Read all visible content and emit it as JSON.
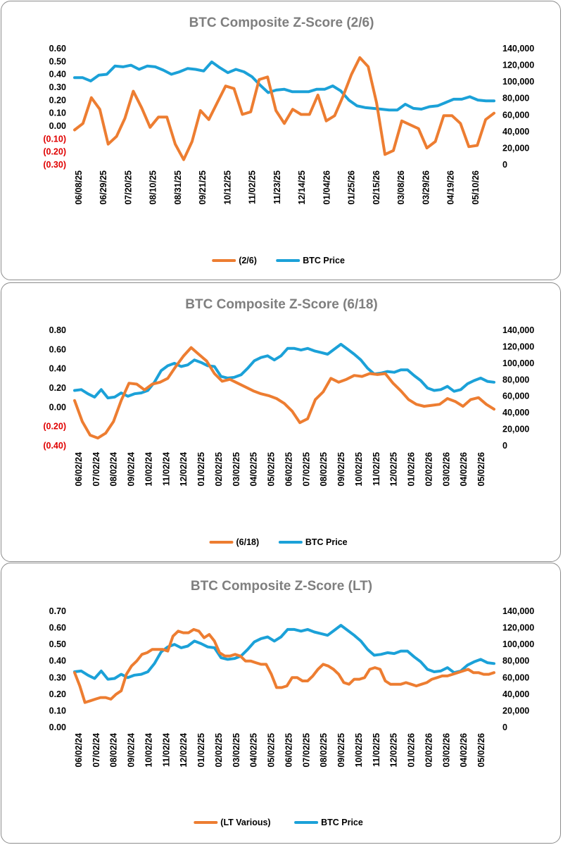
{
  "colors": {
    "zscore": "#ed7d31",
    "price": "#1ba1d8",
    "negative": "#e00000",
    "title": "#7f7f7f",
    "border": "#8c8c8c"
  },
  "chart_data": [
    {
      "type": "line",
      "title": "BTC Composite Z-Score (2/6)",
      "x_tick_labels": [
        "06/08/25",
        "06/29/25",
        "07/20/25",
        "08/10/25",
        "08/31/25",
        "09/21/25",
        "10/12/25",
        "11/02/25",
        "11/23/25",
        "12/14/25",
        "01/04/26",
        "01/25/26",
        "02/15/26",
        "03/08/26",
        "03/29/26",
        "04/19/26",
        "05/10/26"
      ],
      "y_left": {
        "min": -0.3,
        "max": 0.6,
        "step": 0.1,
        "tick_labels": [
          "(0.30)",
          "(0.20)",
          "(0.10)",
          "0.00",
          "0.10",
          "0.20",
          "0.30",
          "0.40",
          "0.50",
          "0.60"
        ]
      },
      "y_right": {
        "min": 0,
        "max": 140000,
        "step": 20000,
        "tick_labels": [
          "0",
          "20,000",
          "40,000",
          "60,000",
          "80,000",
          "100,000",
          "120,000",
          "140,000"
        ]
      },
      "legend": {
        "position": "bottom",
        "zscore_label": "(2/6)",
        "price_label": "BTC Price"
      },
      "series": [
        {
          "name": "(2/6)",
          "axis": "left",
          "values": [
            -0.03,
            0.02,
            0.22,
            0.13,
            -0.14,
            -0.08,
            0.06,
            0.27,
            0.14,
            -0.01,
            0.07,
            0.07,
            -0.14,
            -0.26,
            -0.12,
            0.12,
            0.05,
            0.18,
            0.31,
            0.29,
            0.09,
            0.11,
            0.36,
            0.38,
            0.12,
            0.02,
            0.13,
            0.09,
            0.09,
            0.24,
            0.04,
            0.08,
            0.23,
            0.4,
            0.53,
            0.46,
            0.18,
            -0.22,
            -0.19,
            0.04,
            0.01,
            -0.02,
            -0.17,
            -0.12,
            0.08,
            0.08,
            0.02,
            -0.16,
            -0.15,
            0.05,
            0.1
          ]
        },
        {
          "name": "BTC Price",
          "axis": "right",
          "values": [
            105000,
            105000,
            101000,
            108000,
            109000,
            119000,
            118000,
            120000,
            115000,
            119000,
            118000,
            114000,
            109000,
            112000,
            116000,
            115000,
            113000,
            124000,
            117000,
            111000,
            115000,
            112000,
            106000,
            96000,
            87000,
            90000,
            91000,
            88000,
            88000,
            88000,
            91000,
            91000,
            95000,
            89000,
            78000,
            71000,
            69000,
            68000,
            67000,
            66000,
            66000,
            73000,
            68000,
            67000,
            70000,
            71000,
            75000,
            79000,
            79000,
            82000,
            78000,
            77000,
            77000
          ]
        }
      ]
    },
    {
      "type": "line",
      "title": "BTC Composite Z-Score (6/18)",
      "x_tick_labels": [
        "06/02/24",
        "07/02/24",
        "08/02/24",
        "09/02/24",
        "10/02/24",
        "11/02/24",
        "12/02/24",
        "01/02/25",
        "02/02/25",
        "03/02/25",
        "04/02/25",
        "05/02/25",
        "06/02/25",
        "07/02/25",
        "08/02/25",
        "09/02/25",
        "10/02/25",
        "11/02/25",
        "12/02/25",
        "01/02/26",
        "02/02/26",
        "03/02/26",
        "04/02/26",
        "05/02/26"
      ],
      "y_left": {
        "min": -0.4,
        "max": 0.8,
        "step": 0.2,
        "tick_labels": [
          "(0.40)",
          "(0.20)",
          "0.00",
          "0.20",
          "0.40",
          "0.60",
          "0.80"
        ]
      },
      "y_right": {
        "min": 0,
        "max": 140000,
        "step": 20000,
        "tick_labels": [
          "0",
          "20,000",
          "40,000",
          "60,000",
          "80,000",
          "100,000",
          "120,000",
          "140,000"
        ]
      },
      "legend": {
        "position": "bottom",
        "zscore_label": "(6/18)",
        "price_label": "BTC Price"
      },
      "series": [
        {
          "name": "(6/18)",
          "axis": "left",
          "values": [
            0.07,
            -0.15,
            -0.29,
            -0.32,
            -0.27,
            -0.15,
            0.07,
            0.25,
            0.24,
            0.18,
            0.24,
            0.26,
            0.3,
            0.42,
            0.53,
            0.62,
            0.55,
            0.48,
            0.35,
            0.27,
            0.29,
            0.25,
            0.21,
            0.17,
            0.14,
            0.12,
            0.09,
            0.04,
            -0.04,
            -0.16,
            -0.12,
            0.08,
            0.16,
            0.3,
            0.26,
            0.29,
            0.33,
            0.32,
            0.35,
            0.34,
            0.35,
            0.25,
            0.17,
            0.08,
            0.03,
            0.01,
            0.02,
            0.03,
            0.09,
            0.06,
            0.01,
            0.08,
            0.1,
            0.03,
            -0.02
          ]
        },
        {
          "name": "BTC Price",
          "axis": "right",
          "values": [
            67000,
            68000,
            63000,
            59000,
            68000,
            58000,
            59000,
            64000,
            60000,
            63000,
            64000,
            67000,
            77000,
            91000,
            97000,
            100000,
            96000,
            98000,
            104000,
            101000,
            97000,
            96000,
            84000,
            82000,
            83000,
            86000,
            94000,
            103000,
            107000,
            109000,
            104000,
            109000,
            118000,
            118000,
            116000,
            118000,
            115000,
            113000,
            111000,
            117000,
            123000,
            117000,
            111000,
            104000,
            94000,
            87000,
            88000,
            90000,
            89000,
            92000,
            92000,
            85000,
            79000,
            70000,
            67000,
            68000,
            72000,
            66000,
            68000,
            75000,
            79000,
            82000,
            78000,
            77000
          ]
        }
      ]
    },
    {
      "type": "line",
      "title": "BTC Composite Z-Score (LT)",
      "x_tick_labels": [
        "06/02/24",
        "07/02/24",
        "08/02/24",
        "09/02/24",
        "10/02/24",
        "11/02/24",
        "12/02/24",
        "01/02/25",
        "02/02/25",
        "03/02/25",
        "04/02/25",
        "05/02/25",
        "06/02/25",
        "07/02/25",
        "08/02/25",
        "09/02/25",
        "10/02/25",
        "11/02/25",
        "12/02/25",
        "01/02/26",
        "02/02/26",
        "03/02/26",
        "04/02/26",
        "05/02/26"
      ],
      "y_left": {
        "min": 0,
        "max": 0.7,
        "step": 0.1,
        "tick_labels": [
          "0.00",
          "0.10",
          "0.20",
          "0.30",
          "0.40",
          "0.50",
          "0.60",
          "0.70"
        ]
      },
      "y_right": {
        "min": 0,
        "max": 140000,
        "step": 20000,
        "tick_labels": [
          "0",
          "20,000",
          "40,000",
          "60,000",
          "80,000",
          "100,000",
          "120,000",
          "140,000"
        ]
      },
      "legend": {
        "position": "bottom",
        "zscore_label": "(LT Various)",
        "price_label": "BTC Price"
      },
      "series": [
        {
          "name": "(LT Various)",
          "axis": "left",
          "values": [
            0.33,
            0.25,
            0.15,
            0.16,
            0.17,
            0.18,
            0.18,
            0.17,
            0.2,
            0.22,
            0.32,
            0.37,
            0.4,
            0.44,
            0.45,
            0.47,
            0.47,
            0.47,
            0.46,
            0.55,
            0.58,
            0.57,
            0.57,
            0.59,
            0.58,
            0.54,
            0.56,
            0.52,
            0.45,
            0.43,
            0.43,
            0.44,
            0.43,
            0.4,
            0.4,
            0.39,
            0.38,
            0.38,
            0.32,
            0.24,
            0.24,
            0.25,
            0.3,
            0.3,
            0.28,
            0.28,
            0.31,
            0.35,
            0.38,
            0.37,
            0.35,
            0.32,
            0.27,
            0.26,
            0.29,
            0.29,
            0.3,
            0.35,
            0.36,
            0.35,
            0.28,
            0.26,
            0.26,
            0.26,
            0.27,
            0.26,
            0.25,
            0.26,
            0.27,
            0.29,
            0.3,
            0.31,
            0.31,
            0.32,
            0.33,
            0.34,
            0.35,
            0.33,
            0.33,
            0.32,
            0.32,
            0.33
          ]
        },
        {
          "name": "BTC Price",
          "axis": "right",
          "values": [
            67000,
            68000,
            63000,
            59000,
            68000,
            58000,
            59000,
            64000,
            60000,
            63000,
            64000,
            67000,
            77000,
            91000,
            97000,
            100000,
            96000,
            98000,
            104000,
            101000,
            97000,
            96000,
            84000,
            82000,
            83000,
            86000,
            94000,
            103000,
            107000,
            109000,
            104000,
            109000,
            118000,
            118000,
            116000,
            118000,
            115000,
            113000,
            111000,
            117000,
            123000,
            117000,
            111000,
            104000,
            94000,
            87000,
            88000,
            90000,
            89000,
            92000,
            92000,
            85000,
            79000,
            70000,
            67000,
            68000,
            72000,
            66000,
            68000,
            75000,
            79000,
            82000,
            78000,
            77000
          ]
        }
      ]
    }
  ]
}
